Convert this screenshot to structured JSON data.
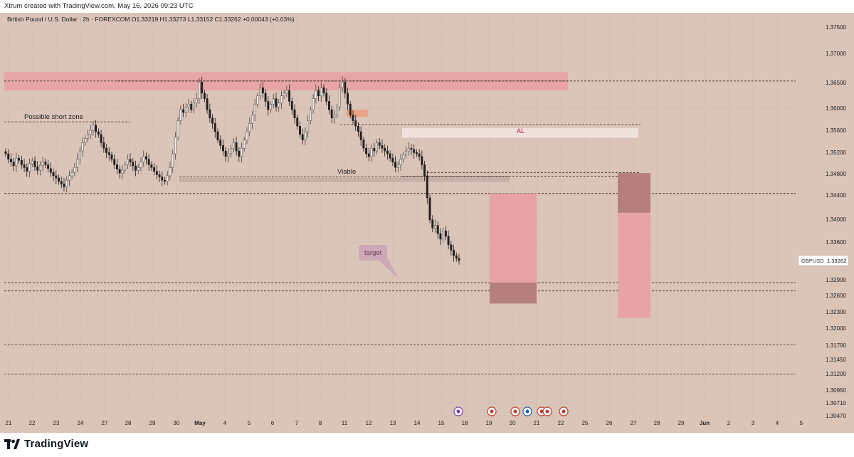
{
  "header": {
    "created_by": "Xtrum created with TradingView.com, May 16, 2026 09:23 UTC"
  },
  "footer": {
    "brand": "TradingView"
  },
  "chart_data": {
    "type": "candlestick",
    "legend": {
      "symbol": "British Pound / U.S. Dollar",
      "interval": "2h",
      "exchange": "FOREXCOM",
      "open": "O1.33219",
      "high": "H1.33273",
      "low": "L1.33152",
      "close": "C1.33262",
      "change": "+0.00043 (+0.03%)"
    },
    "price_axis": {
      "ticks": [
        "1.37500",
        "1.37000",
        "1.36500",
        "1.36000",
        "1.35600",
        "1.35200",
        "1.34800",
        "1.34400",
        "1.34000",
        "1.33600",
        "1.32900",
        "1.32600",
        "1.32300",
        "1.32000",
        "1.31700",
        "1.31450",
        "1.31200",
        "1.30950",
        "1.30710",
        "1.30470"
      ],
      "current": {
        "label": "GBPUSD",
        "value": "1.33262"
      }
    },
    "time_axis": {
      "ticks": [
        "21",
        "22",
        "23",
        "24",
        "27",
        "28",
        "29",
        "30",
        "May",
        "4",
        "5",
        "6",
        "7",
        "8",
        "11",
        "12",
        "13",
        "14",
        "15",
        "18",
        "19",
        "20",
        "21",
        "22",
        "25",
        "26",
        "27",
        "28",
        "29",
        "Jun",
        "2",
        "3",
        "4",
        "5"
      ]
    },
    "annotations": {
      "possible_short_zone": "Possible short zone",
      "viable": "Viable",
      "al": "AL",
      "target": "target"
    },
    "levels": [
      1.3652,
      1.3573,
      1.3479,
      1.3448,
      1.3286,
      1.3271,
      1.3173,
      1.312
    ],
    "zones": {
      "supply": [
        1.3635,
        1.3668
      ],
      "al_zone": [
        1.3549,
        1.3567
      ],
      "viable_zone": [
        1.3466,
        1.3474
      ]
    },
    "candles_close": [
      1.352,
      1.351,
      1.3505,
      1.3498,
      1.3512,
      1.3508,
      1.35,
      1.3495,
      1.3488,
      1.3502,
      1.3507,
      1.3496,
      1.349,
      1.3499,
      1.3505,
      1.35,
      1.3493,
      1.3486,
      1.348,
      1.3476,
      1.347,
      1.3465,
      1.346,
      1.3472,
      1.348,
      1.3486,
      1.3495,
      1.351,
      1.3525,
      1.354,
      1.3548,
      1.3555,
      1.3562,
      1.3572,
      1.356,
      1.3555,
      1.354,
      1.353,
      1.3522,
      1.3518,
      1.351,
      1.35,
      1.3492,
      1.3485,
      1.349,
      1.35,
      1.351,
      1.3505,
      1.3498,
      1.349,
      1.3495,
      1.3505,
      1.3515,
      1.351,
      1.35,
      1.3495,
      1.3488,
      1.3482,
      1.3478,
      1.3472,
      1.347,
      1.348,
      1.3495,
      1.352,
      1.355,
      1.358,
      1.36,
      1.3595,
      1.3605,
      1.361,
      1.36,
      1.3612,
      1.362,
      1.365,
      1.363,
      1.362,
      1.36,
      1.3585,
      1.3575,
      1.356,
      1.3545,
      1.3535,
      1.3525,
      1.3515,
      1.352,
      1.353,
      1.354,
      1.3525,
      1.3515,
      1.353,
      1.3545,
      1.356,
      1.3575,
      1.359,
      1.361,
      1.3625,
      1.364,
      1.363,
      1.3615,
      1.36,
      1.361,
      1.362,
      1.3605,
      1.3612,
      1.3625,
      1.363,
      1.3635,
      1.3615,
      1.36,
      1.3585,
      1.357,
      1.3555,
      1.3545,
      1.356,
      1.358,
      1.36,
      1.362,
      1.3635,
      1.3625,
      1.364,
      1.363,
      1.3615,
      1.36,
      1.3585,
      1.359,
      1.3605,
      1.364,
      1.365,
      1.363,
      1.361,
      1.359,
      1.358,
      1.357,
      1.356,
      1.3545,
      1.353,
      1.352,
      1.3515,
      1.353,
      1.3525,
      1.354,
      1.3535,
      1.353,
      1.3525,
      1.352,
      1.3512,
      1.3505,
      1.3495,
      1.35,
      1.351,
      1.3518,
      1.3525,
      1.353,
      1.3528,
      1.3522,
      1.352,
      1.3515,
      1.35,
      1.348,
      1.344,
      1.34,
      1.3385,
      1.339,
      1.3375,
      1.3365,
      1.338,
      1.337,
      1.3355,
      1.3345,
      1.3335,
      1.333,
      1.3326
    ]
  }
}
